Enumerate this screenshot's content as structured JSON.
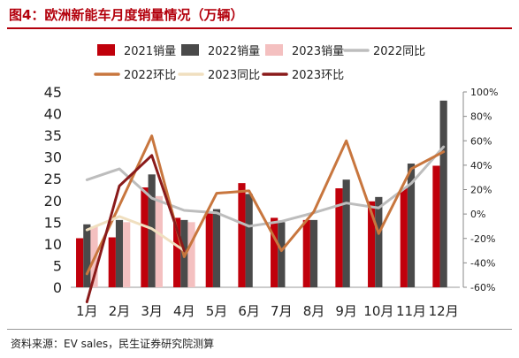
{
  "title": "图4：欧洲新能车月度销量情况（万辆）",
  "source": "资料来源：EV sales，民生证券研究院测算",
  "colors": {
    "s2021": "#c0000b",
    "s2022": "#4a4a4a",
    "s2023": "#f4c0c0",
    "yoy2022": "#bdbdbd",
    "mom2022": "#c8763e",
    "yoy2023": "#f0dfbf",
    "mom2023": "#8a1a1a"
  },
  "chart_data": {
    "type": "bar",
    "categories": [
      "1月",
      "2月",
      "3月",
      "4月",
      "5月",
      "6月",
      "7月",
      "8月",
      "9月",
      "10月",
      "11月",
      "12月"
    ],
    "ylim": [
      0,
      45
    ],
    "yticks": [
      "0",
      "5",
      "10",
      "15",
      "20",
      "25",
      "30",
      "35",
      "40",
      "45"
    ],
    "y2lim": [
      -60,
      100
    ],
    "y2ticks": [
      "-60%",
      "-40%",
      "-20%",
      "0%",
      "20%",
      "40%",
      "60%",
      "80%",
      "100%"
    ],
    "series": [
      {
        "name": "2021销量",
        "kind": "bar",
        "colorKey": "s2021",
        "values": [
          11.3,
          11.5,
          23.0,
          16.0,
          17.5,
          24.0,
          16.0,
          15.5,
          22.8,
          19.8,
          22.8,
          28.0
        ]
      },
      {
        "name": "2022销量",
        "kind": "bar",
        "colorKey": "s2022",
        "values": [
          14.5,
          15.5,
          26.0,
          15.5,
          18.0,
          21.5,
          15.0,
          15.5,
          24.8,
          20.8,
          28.5,
          43.0
        ]
      },
      {
        "name": "2023销量",
        "kind": "bar",
        "colorKey": "s2023",
        "values": [
          14.0,
          15.0,
          21.0,
          15.0,
          null,
          null,
          null,
          null,
          null,
          null,
          null,
          null
        ]
      },
      {
        "name": "2022同比",
        "kind": "line",
        "colorKey": "yoy2022",
        "values": [
          28,
          37,
          13,
          3,
          1,
          -10,
          -6,
          1,
          9,
          5,
          25,
          55
        ]
      },
      {
        "name": "2022环比",
        "kind": "line",
        "colorKey": "mom2022",
        "values": [
          -49,
          7,
          64,
          -35,
          17,
          19,
          -30,
          2,
          60,
          -16,
          37,
          51
        ]
      },
      {
        "name": "2023同比",
        "kind": "line",
        "colorKey": "yoy2023",
        "values": [
          -13,
          -2,
          -12,
          -30,
          null,
          null,
          null,
          null,
          null,
          null,
          null,
          null
        ]
      },
      {
        "name": "2023环比",
        "kind": "line",
        "colorKey": "mom2023",
        "values": [
          -72,
          23,
          48,
          -30,
          null,
          null,
          null,
          null,
          null,
          null,
          null,
          null
        ]
      }
    ],
    "legend": "top"
  }
}
